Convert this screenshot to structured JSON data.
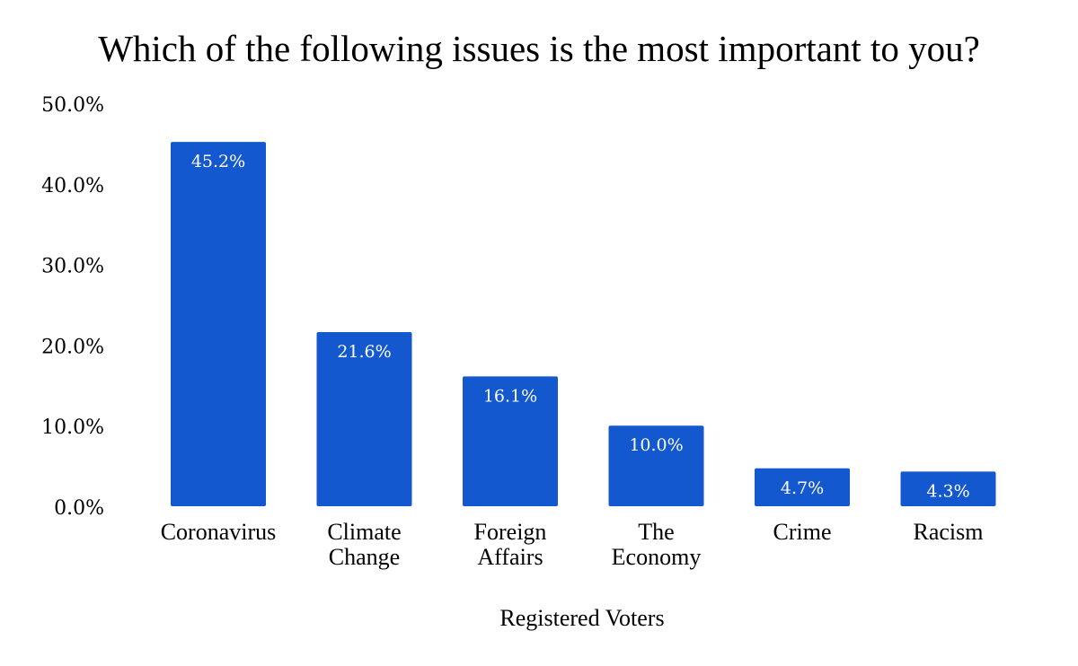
{
  "chart_data": {
    "type": "bar",
    "title": "Which of the following issues is the most important to you?",
    "xlabel": "Registered Voters",
    "ylabel": "",
    "ylim": [
      0,
      50
    ],
    "yticks": [
      "0.0%",
      "10.0%",
      "20.0%",
      "30.0%",
      "40.0%",
      "50.0%"
    ],
    "categories": [
      [
        "Coronavirus"
      ],
      [
        "Climate",
        "Change"
      ],
      [
        "Foreign",
        "Affairs"
      ],
      [
        "The",
        "Economy"
      ],
      [
        "Crime"
      ],
      [
        "Racism"
      ]
    ],
    "values": [
      45.2,
      21.6,
      16.1,
      10.0,
      4.7,
      4.3
    ],
    "data_labels": [
      "45.2%",
      "21.6%",
      "16.1%",
      "10.0%",
      "4.7%",
      "4.3%"
    ],
    "grid": false,
    "legend": "none",
    "bar_color": "#1358cf"
  }
}
